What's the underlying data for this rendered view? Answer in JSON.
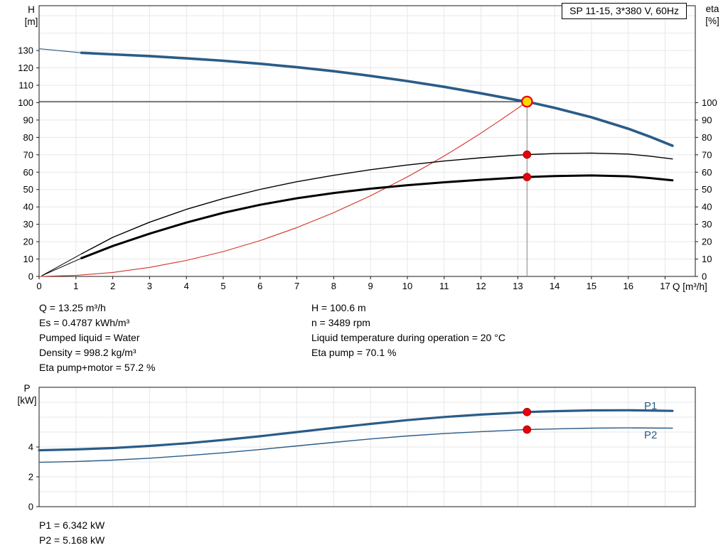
{
  "header": {
    "title": "SP 11-15, 3*380 V, 60Hz"
  },
  "axes": {
    "h": {
      "line1": "H",
      "line2": "[m]"
    },
    "eta": {
      "line1": "eta",
      "line2": "[%]"
    },
    "q": {
      "label": "Q [m³/h]"
    },
    "p": {
      "line1": "P",
      "line2": "[kW]"
    }
  },
  "operating_info": {
    "left": [
      "Q = 13.25 m³/h",
      "Es = 0.4787 kWh/m³",
      "Pumped liquid = Water",
      "Density = 998.2 kg/m³",
      "Eta pump+motor = 57.2 %"
    ],
    "right": [
      "H = 100.6 m",
      "n = 3489 rpm",
      "Liquid temperature during operation = 20 °C",
      "Eta pump = 70.1 %"
    ]
  },
  "power_info": [
    "P1 = 6.342 kW",
    "P2 = 5.168 kW"
  ],
  "curve_labels": {
    "p1": "P1",
    "p2": "P2"
  },
  "colors": {
    "curve_blue": "#2a5c88",
    "curve_black": "#000000",
    "curve_red": "#d63027",
    "dot_red": "#e8000d",
    "dot_edge": "#9b0000",
    "op_fill": "#ffd500",
    "grid": "#e7e7e7",
    "axis": "#1a1a1a",
    "op_line": "#333333",
    "op_vline": "#8c8c8c"
  },
  "chart_data": [
    {
      "type": "line",
      "title": "SP 11-15, 3*380 V, 60Hz",
      "xlabel": "Q [m³/h]",
      "ylabel": "H [m]",
      "y2label": "eta [%]",
      "xlim": [
        0,
        17.82
      ],
      "ylim": [
        0,
        155.8
      ],
      "xticks": [
        0,
        1,
        2,
        3,
        4,
        5,
        6,
        7,
        8,
        9,
        10,
        11,
        12,
        13,
        14,
        15,
        16,
        17
      ],
      "yticks": [
        0,
        10,
        20,
        30,
        40,
        50,
        60,
        70,
        80,
        90,
        100,
        110,
        120,
        130
      ],
      "y2ticks": [
        0,
        10,
        20,
        30,
        40,
        50,
        60,
        70,
        80,
        90,
        100
      ],
      "grid_x": [
        1,
        2,
        3,
        4,
        5,
        6,
        7,
        8,
        9,
        10,
        11,
        12,
        13,
        14,
        15,
        16,
        17
      ],
      "grid_y": [
        10,
        20,
        30,
        40,
        50,
        60,
        70,
        80,
        90,
        100,
        110,
        120,
        130,
        140,
        150
      ],
      "legend_position": "none",
      "series": [
        {
          "name": "pump-curve-lead",
          "color": "blue",
          "width": 1.1,
          "x": [
            0,
            1.15
          ],
          "y": [
            131,
            128.7
          ]
        },
        {
          "name": "eta-pump-lead",
          "color": "black",
          "width": 1,
          "x": [
            0.08,
            1.15
          ],
          "y": [
            0.5,
            13
          ]
        },
        {
          "name": "eta-pump-motor-lead",
          "color": "black",
          "width": 1,
          "x": [
            0.08,
            1.15
          ],
          "y": [
            0.5,
            10.5
          ]
        },
        {
          "name": "affinity-parabola",
          "color": "red",
          "width": 1.1,
          "x": [
            0,
            1,
            2,
            3,
            4,
            5,
            6,
            7,
            8,
            9,
            10,
            10.5,
            11,
            11.5,
            12,
            12.5,
            13,
            13.25
          ],
          "y": [
            0,
            0.6,
            2.3,
            5.2,
            9.2,
            14.3,
            20.6,
            28.1,
            36.7,
            46.4,
            57.3,
            63.2,
            69.3,
            75.8,
            82.5,
            89.5,
            96.8,
            100.6
          ]
        },
        {
          "name": "eta-pump-curve",
          "color": "black",
          "width": 1.4,
          "x": [
            1.15,
            2,
            3,
            4,
            5,
            6,
            7,
            8,
            9,
            10,
            11,
            12,
            13,
            13.25,
            14,
            15,
            16,
            16.6,
            17.2
          ],
          "y": [
            13,
            22.5,
            31.2,
            38.6,
            44.8,
            50.1,
            54.5,
            58.2,
            61.4,
            64.1,
            66.4,
            68.3,
            69.8,
            70.1,
            70.7,
            71.0,
            70.4,
            69.2,
            67.6
          ]
        },
        {
          "name": "eta-pump-motor-curve",
          "color": "black",
          "width": 3,
          "x": [
            1.15,
            2,
            3,
            4,
            5,
            6,
            7,
            8,
            9,
            10,
            11,
            12,
            13,
            13.25,
            14,
            15,
            16,
            16.6,
            17.2
          ],
          "y": [
            10.5,
            17.5,
            24.6,
            31.0,
            36.6,
            41.2,
            45.0,
            48.0,
            50.5,
            52.5,
            54.2,
            55.6,
            56.9,
            57.2,
            57.8,
            58.1,
            57.6,
            56.6,
            55.3
          ]
        },
        {
          "name": "pump-curve",
          "color": "blue",
          "width": 3.6,
          "x": [
            1.15,
            2,
            3,
            4,
            5,
            6,
            7,
            8,
            9,
            10,
            11,
            12,
            13,
            13.25,
            14,
            15,
            16,
            16.6,
            17.2
          ],
          "y": [
            128.7,
            127.8,
            126.8,
            125.5,
            124.1,
            122.4,
            120.4,
            118.1,
            115.4,
            112.4,
            109.1,
            105.4,
            101.4,
            100.6,
            97.0,
            91.6,
            85.0,
            80.3,
            75.2
          ]
        }
      ],
      "op_lines": {
        "q": 13.25,
        "h": 100.6
      },
      "markers": [
        {
          "q": 13.25,
          "v": 70.1,
          "type": "dot"
        },
        {
          "q": 13.25,
          "v": 57.2,
          "type": "dot"
        },
        {
          "q": 13.25,
          "v": 100.6,
          "type": "op"
        }
      ],
      "operating_point": {
        "Q_m3h": 13.25,
        "H_m": 100.6,
        "eta_pump_pct": 70.1,
        "eta_pump_motor_pct": 57.2,
        "n_rpm": 3489,
        "Es_kWh_m3": 0.4787
      }
    },
    {
      "type": "line",
      "title": "",
      "xlabel": "",
      "ylabel": "P [kW]",
      "xlim": [
        0,
        17.82
      ],
      "ylim": [
        0,
        8
      ],
      "yticks": [
        0,
        2,
        4
      ],
      "grid_x": [
        1,
        2,
        3,
        4,
        5,
        6,
        7,
        8,
        9,
        10,
        11,
        12,
        13,
        14,
        15,
        16,
        17
      ],
      "grid_y": [
        1,
        2,
        3,
        4,
        5,
        6,
        7
      ],
      "legend_position": "right",
      "series": [
        {
          "name": "p2-curve",
          "color": "blue",
          "width": 1.4,
          "x": [
            0,
            1,
            2,
            3,
            4,
            5,
            6,
            7,
            8,
            9,
            10,
            11,
            12,
            13,
            13.25,
            14,
            15,
            16,
            17.2
          ],
          "y": [
            2.97,
            3.03,
            3.12,
            3.25,
            3.42,
            3.61,
            3.83,
            4.07,
            4.31,
            4.54,
            4.74,
            4.9,
            5.03,
            5.14,
            5.168,
            5.21,
            5.26,
            5.28,
            5.26
          ]
        },
        {
          "name": "p1-curve",
          "color": "blue",
          "width": 3.2,
          "x": [
            0,
            1,
            2,
            3,
            4,
            5,
            6,
            7,
            8,
            9,
            10,
            11,
            12,
            13,
            13.25,
            14,
            15,
            16,
            17.2
          ],
          "y": [
            3.78,
            3.84,
            3.93,
            4.07,
            4.25,
            4.47,
            4.72,
            5.0,
            5.28,
            5.55,
            5.8,
            6.01,
            6.17,
            6.3,
            6.342,
            6.4,
            6.45,
            6.46,
            6.42
          ]
        }
      ],
      "markers": [
        {
          "q": 13.25,
          "v": 6.342,
          "type": "dot"
        },
        {
          "q": 13.25,
          "v": 5.168,
          "type": "dot"
        }
      ],
      "operating_point": {
        "Q_m3h": 13.25,
        "P1_kW": 6.342,
        "P2_kW": 5.168
      }
    }
  ]
}
